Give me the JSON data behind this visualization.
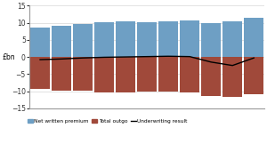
{
  "net_written_premium": [
    8.5,
    9.2,
    9.5,
    10.2,
    10.3,
    10.2,
    10.3,
    10.6,
    9.8,
    10.5,
    11.5
  ],
  "total_outgo": [
    -9.3,
    -9.8,
    -9.8,
    -10.3,
    -10.3,
    -10.1,
    -10.1,
    -10.5,
    -11.3,
    -11.8,
    -11.0
  ],
  "underwriting_result": [
    -0.8,
    -0.6,
    -0.3,
    -0.1,
    0.0,
    0.1,
    0.2,
    0.1,
    -1.5,
    -2.5,
    -0.3
  ],
  "bar_color_blue": "#6E9FC4",
  "bar_color_red": "#A0493A",
  "line_color": "#000000",
  "ylabel": "£bn",
  "ylim": [
    -15,
    15
  ],
  "yticks": [
    -15,
    -10,
    -5,
    0,
    5,
    10,
    15
  ],
  "legend_labels": [
    "Net written premium",
    "Total outgo",
    "Underwriting result"
  ],
  "background_color": "#FFFFFF",
  "bar_width": 0.9
}
